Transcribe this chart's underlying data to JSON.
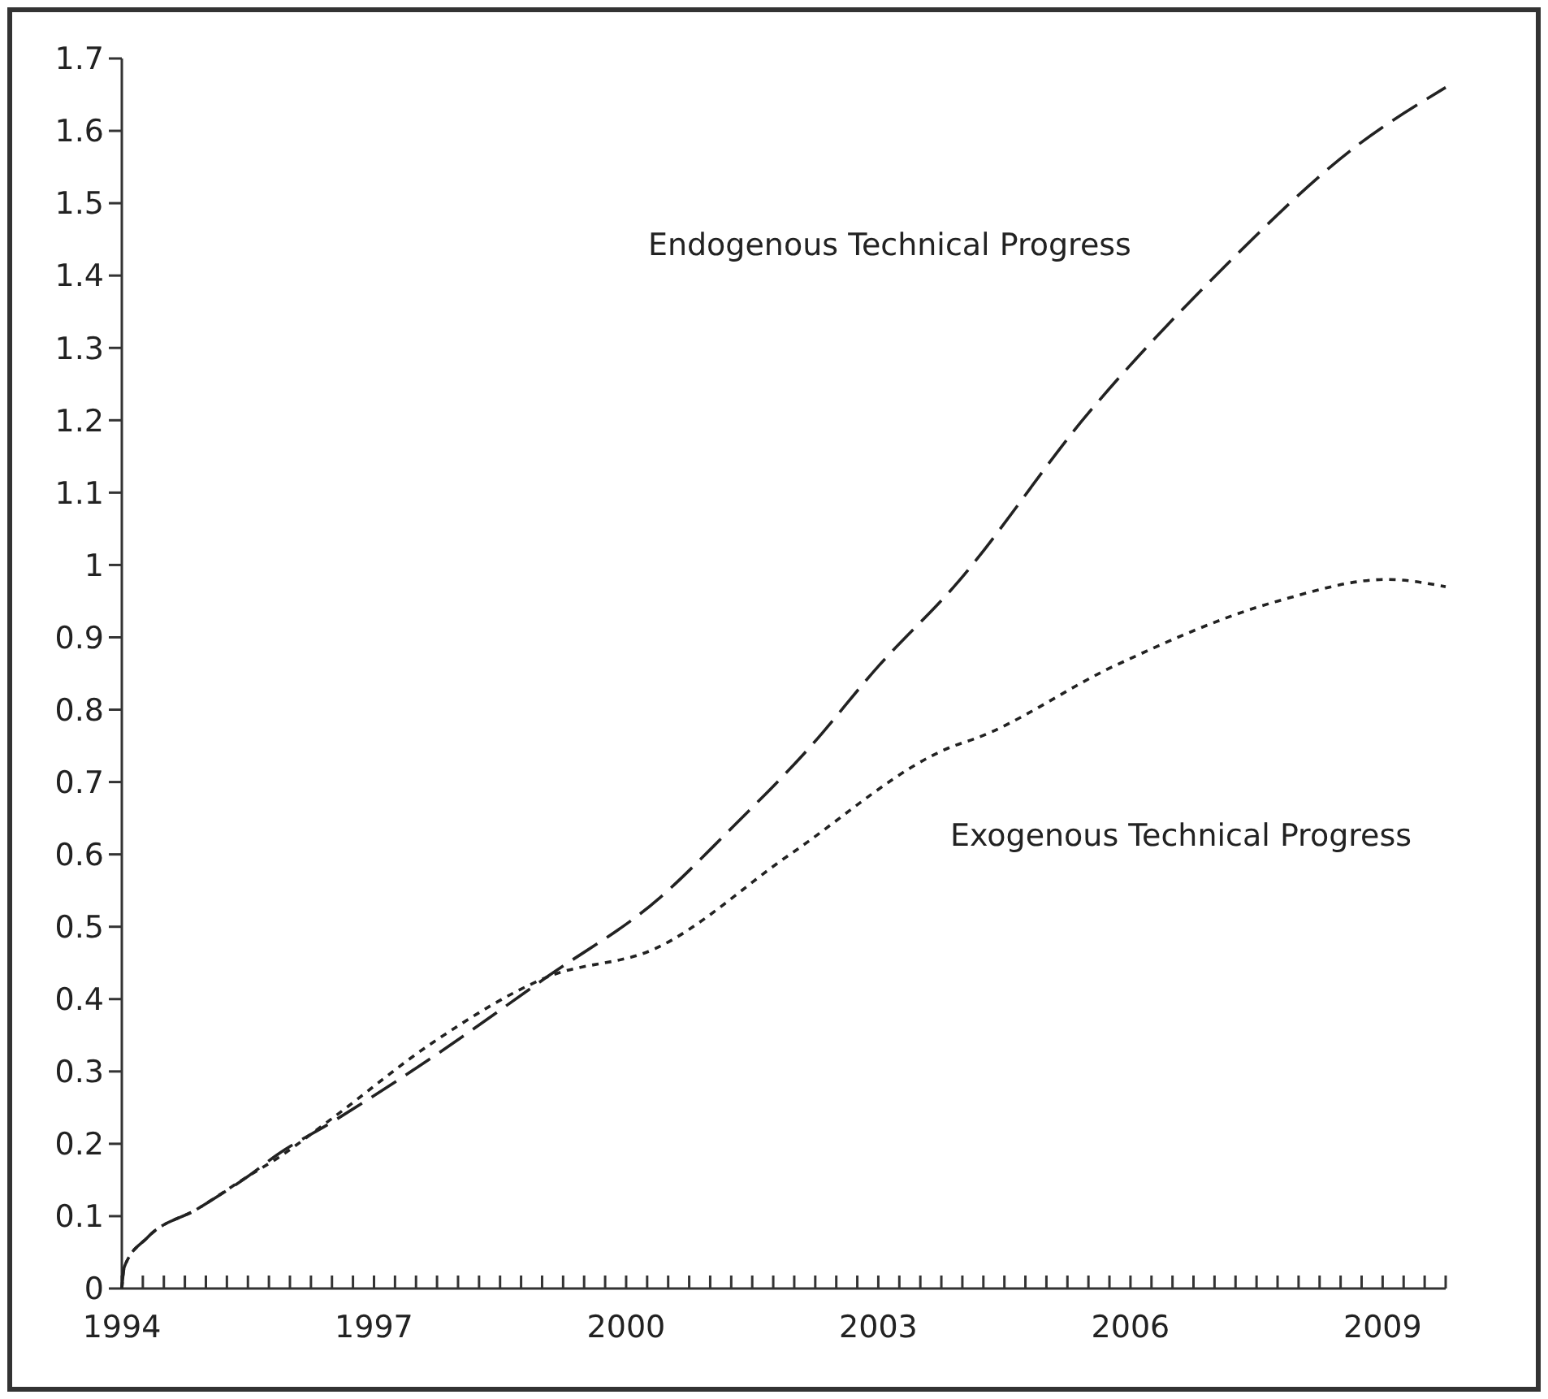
{
  "chart_data": {
    "type": "line",
    "xlim": [
      1994,
      2009.75
    ],
    "xticks": [
      1994,
      {
        "value": 1994.25,
        "label": null
      },
      {
        "value": 1994.5,
        "label": null
      },
      {
        "value": 1994.75,
        "label": null
      },
      {
        "value": 1995,
        "label": null
      },
      {
        "value": 1995.25,
        "label": null
      },
      {
        "value": 1995.5,
        "label": null
      },
      {
        "value": 1995.75,
        "label": null
      },
      {
        "value": 1996,
        "label": null
      },
      {
        "value": 1996.25,
        "label": null
      },
      {
        "value": 1996.5,
        "label": null
      },
      {
        "value": 1996.75,
        "label": null
      },
      1997,
      {
        "value": 1997.25,
        "label": null
      },
      {
        "value": 1997.5,
        "label": null
      },
      {
        "value": 1997.75,
        "label": null
      },
      {
        "value": 1998,
        "label": null
      },
      {
        "value": 1998.25,
        "label": null
      },
      {
        "value": 1998.5,
        "label": null
      },
      {
        "value": 1998.75,
        "label": null
      },
      {
        "value": 1999,
        "label": null
      },
      {
        "value": 1999.25,
        "label": null
      },
      {
        "value": 1999.5,
        "label": null
      },
      {
        "value": 1999.75,
        "label": null
      },
      2000,
      {
        "value": 2000.25,
        "label": null
      },
      {
        "value": 2000.5,
        "label": null
      },
      {
        "value": 2000.75,
        "label": null
      },
      {
        "value": 2001,
        "label": null
      },
      {
        "value": 2001.25,
        "label": null
      },
      {
        "value": 2001.5,
        "label": null
      },
      {
        "value": 2001.75,
        "label": null
      },
      {
        "value": 2002,
        "label": null
      },
      {
        "value": 2002.25,
        "label": null
      },
      {
        "value": 2002.5,
        "label": null
      },
      {
        "value": 2002.75,
        "label": null
      },
      2003,
      {
        "value": 2003.25,
        "label": null
      },
      {
        "value": 2003.5,
        "label": null
      },
      {
        "value": 2003.75,
        "label": null
      },
      {
        "value": 2004,
        "label": null
      },
      {
        "value": 2004.25,
        "label": null
      },
      {
        "value": 2004.5,
        "label": null
      },
      {
        "value": 2004.75,
        "label": null
      },
      {
        "value": 2005,
        "label": null
      },
      {
        "value": 2005.25,
        "label": null
      },
      {
        "value": 2005.5,
        "label": null
      },
      {
        "value": 2005.75,
        "label": null
      },
      2006,
      {
        "value": 2006.25,
        "label": null
      },
      {
        "value": 2006.5,
        "label": null
      },
      {
        "value": 2006.75,
        "label": null
      },
      {
        "value": 2007,
        "label": null
      },
      {
        "value": 2007.25,
        "label": null
      },
      {
        "value": 2007.5,
        "label": null
      },
      {
        "value": 2007.75,
        "label": null
      },
      {
        "value": 2008,
        "label": null
      },
      {
        "value": 2008.25,
        "label": null
      },
      {
        "value": 2008.5,
        "label": null
      },
      {
        "value": 2008.75,
        "label": null
      },
      2009,
      {
        "value": 2009.25,
        "label": null
      },
      {
        "value": 2009.5,
        "label": null
      },
      {
        "value": 2009.75,
        "label": null
      }
    ],
    "ylim": [
      0,
      1.7
    ],
    "yticks": [
      0,
      0.1,
      0.2,
      0.3,
      0.4,
      0.5,
      0.6,
      0.7,
      0.8,
      0.9,
      1,
      1.1,
      1.2,
      1.3,
      1.4,
      1.5,
      1.6,
      1.7
    ],
    "grid": false,
    "marker": "none",
    "series": [
      {
        "name": "Endogenous Technical Progress",
        "color": "#222222",
        "line_style": "dashed",
        "x": [
          1994,
          1994.03,
          1994.3,
          1994.9,
          1995.5,
          1995.85,
          1996.5,
          1997.7,
          1999.05,
          2000.4,
          2001.2,
          2002.2,
          2003,
          2003.9,
          2005.5,
          2007.1,
          2008.7,
          2009.75
        ],
        "values": [
          0,
          0.03,
          0.07,
          0.11,
          0.155,
          0.185,
          0.23,
          0.32,
          0.43,
          0.54,
          0.63,
          0.75,
          0.86,
          0.97,
          1.21,
          1.41,
          1.58,
          1.66
        ]
      },
      {
        "name": "Exogenous Technical Progress",
        "color": "#222222",
        "line_style": "dotted",
        "x": [
          1994,
          1994.03,
          1994.3,
          1994.9,
          1995.5,
          1995.85,
          1996.5,
          1997.7,
          1999.05,
          2000.35,
          2001.95,
          2003.9,
          2004.15,
          2005.8,
          2007.75,
          2009.05,
          2009.75
        ],
        "values": [
          0,
          0.03,
          0.07,
          0.11,
          0.155,
          0.18,
          0.235,
          0.34,
          0.43,
          0.47,
          0.6,
          0.75,
          0.76,
          0.86,
          0.95,
          0.98,
          0.97
        ]
      }
    ]
  }
}
